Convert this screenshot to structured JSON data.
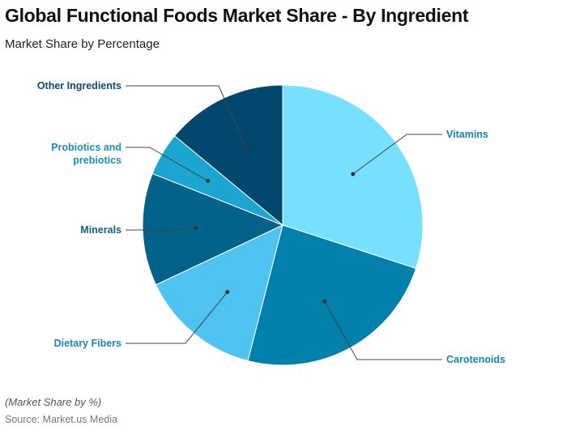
{
  "header": {
    "title": "Global Functional Foods Market Share - By Ingredient",
    "subtitle": "Market Share by Percentage"
  },
  "footer": {
    "note": "(Market Share by %)",
    "source": "Source: Market.us Media"
  },
  "chart_data": {
    "type": "pie",
    "title": "Global Functional Foods Market Share - By Ingredient",
    "subtitle": "Market Share by Percentage",
    "categories": [
      "Vitamins",
      "Carotenoids",
      "Dietary Fibers",
      "Minerals",
      "Probiotics and prebiotics",
      "Other Ingredients"
    ],
    "values": [
      30,
      24,
      14,
      13,
      5,
      14
    ],
    "unit": "%",
    "colors": [
      "#76E1FE",
      "#0080AA",
      "#4FC3EF",
      "#02628A",
      "#1BA6D1",
      "#00476E"
    ],
    "label_colors": [
      "#1583AE",
      "#1583AE",
      "#1A86B3",
      "#0F5F8C",
      "#1A8DBA",
      "#0D4A6E"
    ],
    "start_angle": "12 o'clock, clockwise",
    "legend_position": "callout labels"
  },
  "labels": {
    "vitamins": "Vitamins",
    "carotenoids": "Carotenoids",
    "dietary_fibers": "Dietary Fibers",
    "minerals": "Minerals",
    "probiotics_line1": "Probiotics and",
    "probiotics_line2": "prebiotics",
    "other": "Other Ingredients"
  }
}
